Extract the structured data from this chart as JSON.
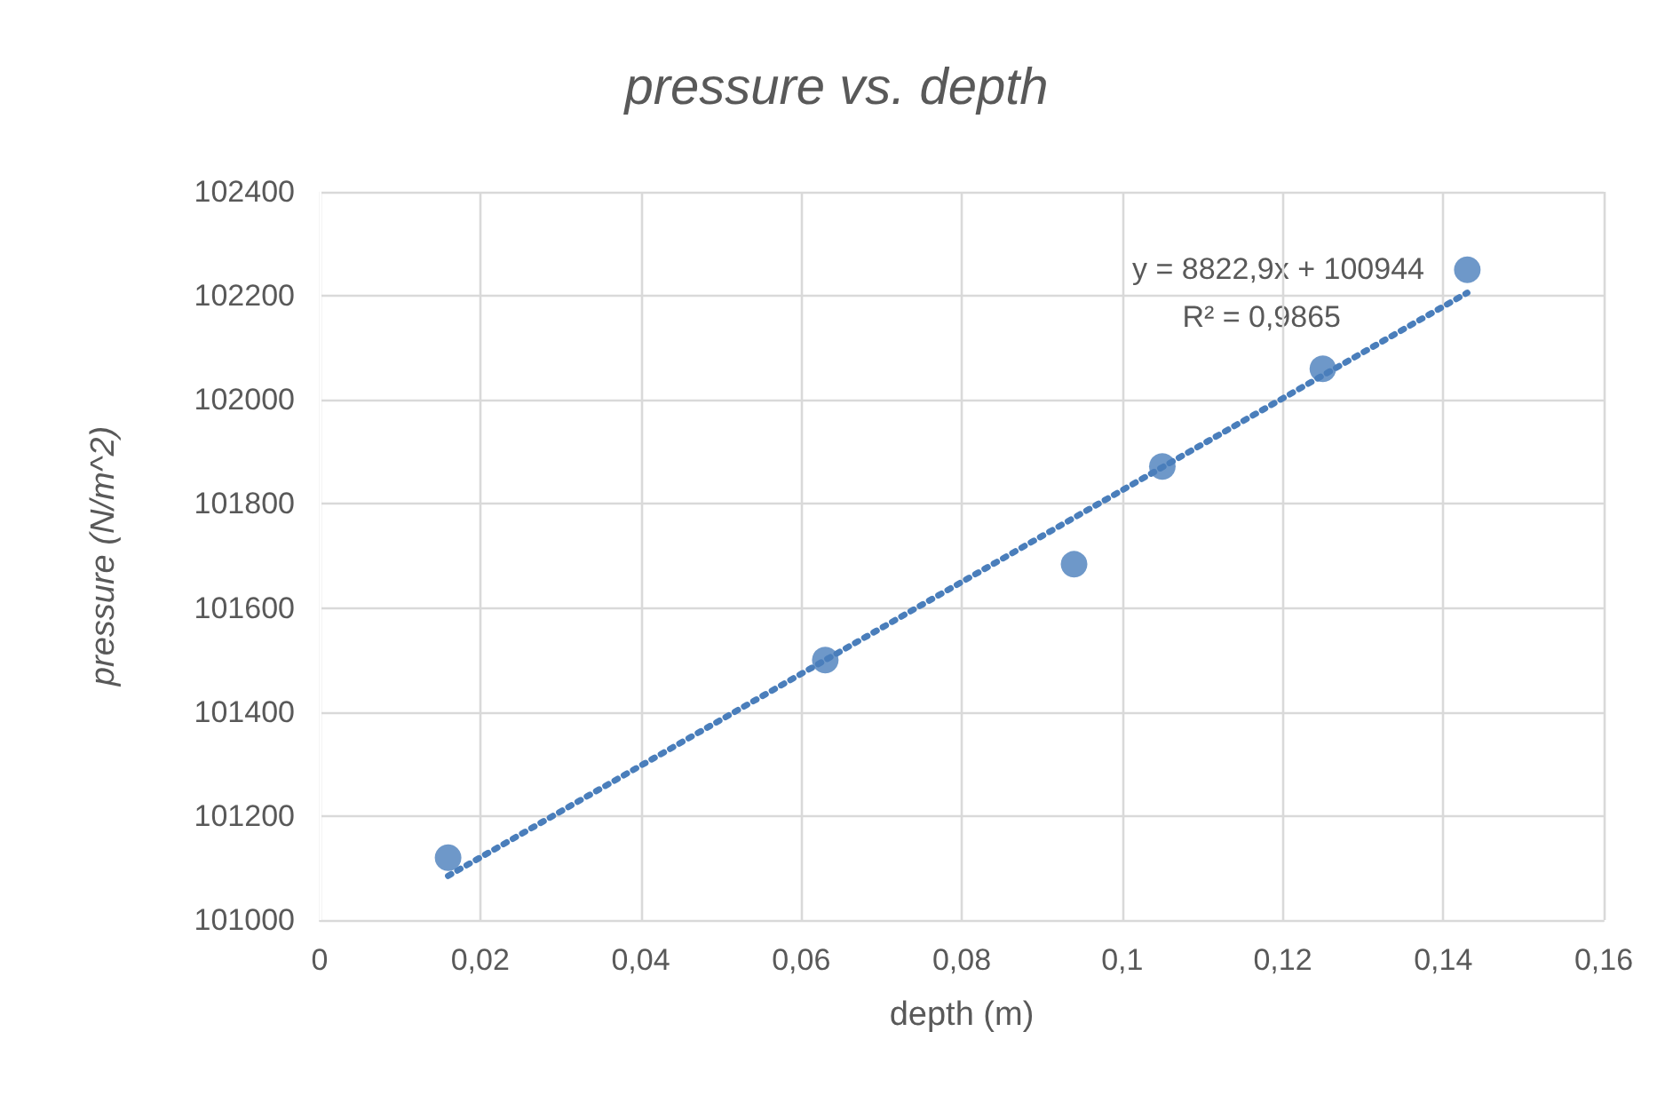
{
  "chart_data": {
    "type": "scatter",
    "title": "pressure vs. depth",
    "xlabel": "depth (m)",
    "ylabel": "pressure (N/m^2)",
    "annotations": [
      "y = 8822,9x + 100944",
      "R² = 0,9865"
    ],
    "series": [
      {
        "color": "#4a7ebb",
        "x": [
          0.016,
          0.063,
          0.094,
          0.105,
          0.125,
          0.143
        ],
        "values": [
          101120,
          101500,
          101684,
          101872,
          102060,
          102250
        ],
        "marker": "circle"
      },
      {
        "type": "line",
        "color": "#4a7ebb",
        "x": [
          0.016,
          0.143
        ],
        "values": [
          101085,
          102206
        ],
        "marker": "none",
        "line_style": "dotted"
      }
    ],
    "xlim": [
      0,
      0.16
    ],
    "xticks": [
      {
        "value": 0,
        "label": "0"
      },
      {
        "value": 0.02,
        "label": "0,02"
      },
      {
        "value": 0.04,
        "label": "0,04"
      },
      {
        "value": 0.06,
        "label": "0,06"
      },
      {
        "value": 0.08,
        "label": "0,08"
      },
      {
        "value": 0.1,
        "label": "0,1"
      },
      {
        "value": 0.12,
        "label": "0,12"
      },
      {
        "value": 0.14,
        "label": "0,14"
      },
      {
        "value": 0.16,
        "label": "0,16"
      }
    ],
    "ylim": [
      101000,
      102400
    ],
    "yticks": [
      101000,
      101200,
      101400,
      101600,
      101800,
      102000,
      102200,
      102400
    ],
    "grid": true
  }
}
